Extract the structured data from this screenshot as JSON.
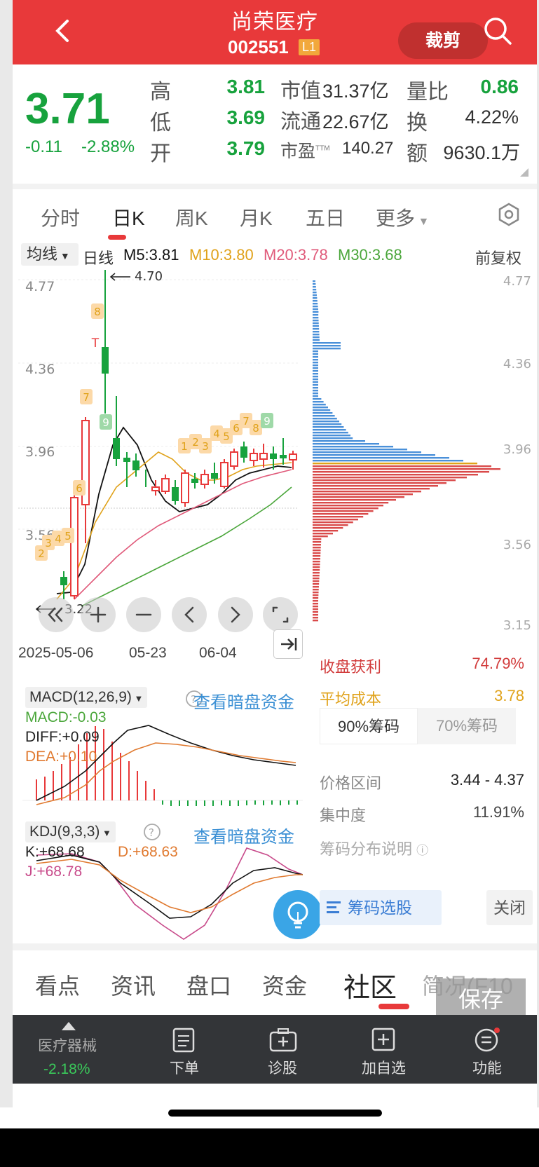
{
  "header": {
    "title": "尚荣医疗",
    "code": "002551",
    "level_badge": "L1",
    "crop_button": "裁剪"
  },
  "quote": {
    "price": "3.71",
    "change": "-0.11",
    "change_pct": "-2.88%",
    "high_label": "高",
    "high": "3.81",
    "low_label": "低",
    "low": "3.69",
    "open_label": "开",
    "open": "3.79",
    "mcap_label": "市值",
    "mcap": "31.37亿",
    "float_label": "流通",
    "float": "22.67亿",
    "pe_label": "市盈",
    "pe_sup": "TTM",
    "pe": "140.27",
    "vol_ratio_label": "量比",
    "vol_ratio": "0.86",
    "turnover_label": "换",
    "turnover": "4.22%",
    "amount_label": "额",
    "amount": "9630.1万"
  },
  "tabs": [
    "分时",
    "日K",
    "周K",
    "月K",
    "五日",
    "更多"
  ],
  "active_tab": "日K",
  "ma_bar": {
    "selector": "均线",
    "period": "日线",
    "m5": "M5:3.81",
    "m10": "M10:3.80",
    "m20": "M20:3.78",
    "m30": "M30:3.68",
    "adjust": "前复权"
  },
  "kline": {
    "ylabels": [
      "4.77",
      "4.36",
      "3.96",
      "3.56"
    ],
    "high_note": "4.70",
    "low_note": "3.22",
    "signals": [
      "2",
      "3",
      "4",
      "5",
      "6",
      "7",
      "8",
      "9",
      "1",
      "2",
      "3",
      "4",
      "5",
      "6",
      "7",
      "8",
      "9"
    ],
    "signal_T": "T",
    "dates": [
      "2025-05-06",
      "05-23",
      "06-04"
    ]
  },
  "chip_axis": [
    "4.77",
    "4.36",
    "3.96",
    "3.56",
    "3.15"
  ],
  "macd": {
    "title": "MACD(12,26,9)",
    "dark_pool": "查看暗盘资金",
    "macd": "MACD:-0.03",
    "diff": "DIFF:+0.09",
    "dea": "DEA:+0.10"
  },
  "kdj": {
    "title": "KDJ(9,3,3)",
    "dark_pool": "查看暗盘资金",
    "k": "K:+68.68",
    "d": "D:+68.63",
    "j": "J:+68.78"
  },
  "chip": {
    "profit_label": "收盘获利",
    "profit": "74.79%",
    "avg_cost_label": "平均成本",
    "avg_cost": "3.78",
    "tab90": "90%筹码",
    "tab70": "70%筹码",
    "range_label": "价格区间",
    "range": "3.44 - 4.37",
    "conc_label": "集中度",
    "conc": "11.91%",
    "explain": "筹码分布说明",
    "select_btn": "筹码选股",
    "close_btn": "关闭"
  },
  "bottom_tabs": [
    "看点",
    "资讯",
    "盘口",
    "资金",
    "社区",
    "简况(F10"
  ],
  "active_bottom_tab": "社区",
  "save_button": "保存",
  "nav": {
    "sector": "医疗器械",
    "sector_change": "-2.18%",
    "order": "下单",
    "diagnose": "诊股",
    "add_watch": "加自选",
    "functions": "功能"
  },
  "colors": {
    "header_red": "#e8393a",
    "down_green": "#17a23d",
    "up_red": "#e8393a",
    "m5": "#111111",
    "m10": "#e0a21a",
    "m20": "#e05a7a",
    "m30": "#4aa63a",
    "link_blue": "#3a8fd4"
  }
}
